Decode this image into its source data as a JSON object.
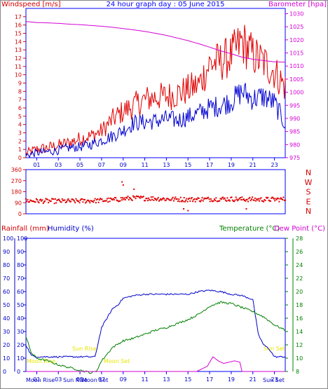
{
  "top_chart": {
    "title": "24 hour graph day : 05 June 2015",
    "left_label": "Windspeed [m/s]",
    "right_label": "Barometer [hpa]"
  },
  "bottom_chart": {
    "rain_label": "Rainfall (mm)",
    "humidity_label": "Humidity (%)",
    "temp_label": "Temperature (°C)",
    "dew_label": "Dew Point (°C)",
    "moon_rise_label": "Moon Rise",
    "moon_set_label": "Moon Set",
    "sun_rise_label": "Sun Rise",
    "sun_set_label": "Sun Set"
  },
  "colors": {
    "red": "#d40000",
    "blue": "#0000c8",
    "magenta": "#d400d4",
    "green": "#008000",
    "axis_blue": "#0000ff",
    "yellow": "#e6e600"
  },
  "chart_data": [
    {
      "type": "line",
      "title": "24 hour graph day : 05 June 2015",
      "ylabel": "Windspeed [m/s]",
      "y2label": "Barometer [hpa]",
      "x_ticks": [
        "01",
        "03",
        "05",
        "07",
        "09",
        "11",
        "13",
        "15",
        "17",
        "19",
        "21",
        "23"
      ],
      "xlim": [
        0,
        24
      ],
      "ylim": [
        0,
        18
      ],
      "y_ticks": [
        0,
        1,
        2,
        3,
        4,
        5,
        6,
        7,
        8,
        9,
        10,
        11,
        12,
        13,
        14,
        15,
        16,
        17
      ],
      "y2lim": [
        975,
        1032
      ],
      "y2_ticks": [
        975,
        980,
        985,
        990,
        995,
        1000,
        1005,
        1010,
        1015,
        1020,
        1025,
        1030
      ],
      "series": [
        {
          "name": "Windspeed",
          "axis": "left",
          "x": [
            0,
            1,
            2,
            3,
            4,
            5,
            6,
            7,
            8,
            9,
            10,
            11,
            12,
            13,
            14,
            15,
            16,
            17,
            18,
            19,
            20,
            21,
            22,
            23,
            24
          ],
          "values": [
            0.5,
            1.0,
            1.2,
            1.5,
            1.8,
            2.3,
            2.6,
            3.2,
            4.6,
            5.6,
            6.3,
            7.0,
            7.3,
            7.4,
            7.7,
            8.2,
            8.8,
            11.3,
            11.6,
            12.3,
            14.0,
            12.4,
            11.5,
            10.4,
            8.5
          ]
        },
        {
          "name": "Gust",
          "axis": "left",
          "x": [
            0,
            1,
            2,
            3,
            4,
            5,
            6,
            7,
            8,
            9,
            10,
            11,
            12,
            13,
            14,
            15,
            16,
            17,
            18,
            19,
            20,
            21,
            22,
            23,
            24
          ],
          "values": [
            0.3,
            0.6,
            0.7,
            0.9,
            1.2,
            1.3,
            1.6,
            2.1,
            2.6,
            3.3,
            4.2,
            4.3,
            4.4,
            4.7,
            4.5,
            4.9,
            5.4,
            6.0,
            6.3,
            6.8,
            8.0,
            7.1,
            7.4,
            6.6,
            4.0
          ]
        },
        {
          "name": "Barometer",
          "axis": "right",
          "x": [
            0,
            1,
            2,
            3,
            4,
            5,
            6,
            7,
            8,
            9,
            10,
            11,
            12,
            13,
            14,
            15,
            16,
            17,
            18,
            19,
            20,
            21,
            22,
            23,
            24
          ],
          "values": [
            1027.0,
            1026.6,
            1026.5,
            1026.3,
            1026.0,
            1025.8,
            1025.5,
            1025.2,
            1024.8,
            1024.3,
            1023.8,
            1023.2,
            1022.5,
            1021.7,
            1020.7,
            1019.7,
            1018.5,
            1017.2,
            1015.8,
            1014.7,
            1013.4,
            1012.6,
            1012.1,
            1011.6,
            1011.5
          ]
        }
      ]
    },
    {
      "type": "scatter",
      "title": "",
      "ylabel": "",
      "y_ticks": [
        0,
        90,
        180,
        270,
        360
      ],
      "ylim": [
        0,
        360
      ],
      "xlim": [
        0,
        24
      ],
      "right_labels": [
        "N",
        "W",
        "S",
        "E",
        "N"
      ],
      "series": [
        {
          "name": "Wind direction",
          "x": [
            0,
            1,
            2,
            3,
            4,
            5,
            6,
            7,
            8,
            9,
            10,
            11,
            12,
            13,
            14,
            15,
            16,
            17,
            18,
            19,
            20,
            21,
            22,
            23,
            24
          ],
          "values": [
            106,
            105,
            104,
            103,
            103,
            104,
            106,
            108,
            112,
            122,
            128,
            126,
            124,
            120,
            118,
            116,
            117,
            119,
            121,
            120,
            118,
            117,
            116,
            117,
            118
          ]
        }
      ]
    },
    {
      "type": "line",
      "title": "",
      "ylabel": "Rainfall (mm)",
      "y1label": "Humidity (%)",
      "y2label": "Temperature (°C)",
      "y3label": "Dew Point (°C)",
      "x_ticks": [
        "01",
        "03",
        "05",
        "07",
        "09",
        "11",
        "13",
        "15",
        "17",
        "19",
        "21",
        "23"
      ],
      "xlim": [
        0,
        24
      ],
      "ylim": [
        0,
        100
      ],
      "y_ticks": [
        0,
        10,
        20,
        30,
        40,
        50,
        60,
        70,
        80,
        90,
        100
      ],
      "y2lim": [
        8,
        28
      ],
      "y2_ticks": [
        8,
        10,
        12,
        14,
        16,
        18,
        20,
        22,
        24,
        26,
        28
      ],
      "series": [
        {
          "name": "Humidity",
          "axis": "left",
          "x": [
            0,
            0.5,
            1,
            2,
            3,
            4,
            5,
            6,
            6.4,
            7,
            8,
            8.5,
            9,
            10,
            11,
            12,
            13,
            14,
            15,
            16,
            17,
            18,
            19,
            20,
            21,
            21.5,
            22,
            22.5,
            23,
            24
          ],
          "values": [
            20,
            12,
            11,
            11,
            11,
            11,
            11,
            11,
            11,
            33,
            47,
            50,
            55,
            57,
            58,
            58,
            58,
            58,
            58,
            60,
            61,
            60,
            58,
            57,
            54,
            28,
            20,
            17,
            11,
            11
          ]
        },
        {
          "name": "Temperature",
          "axis": "right",
          "x": [
            0,
            0.5,
            1,
            2,
            3,
            4,
            5,
            6,
            6.5,
            7,
            8,
            9,
            10,
            11,
            12,
            13,
            14,
            15,
            16,
            17,
            18,
            19,
            20,
            21,
            22,
            23,
            24
          ],
          "values": [
            13.2,
            10.8,
            10.0,
            9.6,
            9.0,
            8.6,
            8.2,
            7.8,
            8.0,
            9.6,
            11.6,
            12.6,
            13.0,
            13.6,
            14.2,
            14.6,
            15.2,
            15.8,
            16.6,
            17.8,
            18.4,
            18.2,
            17.6,
            17.0,
            16.2,
            15.0,
            14.2
          ]
        },
        {
          "name": "Rainfall",
          "axis": "left",
          "x": [
            0,
            15.8,
            16.3,
            16.8,
            17.3,
            17.8,
            18.3,
            18.8,
            19.3,
            19.8,
            20.0,
            24
          ],
          "values": [
            0,
            0,
            2,
            4,
            11,
            8,
            6,
            7,
            8,
            7,
            0,
            0
          ]
        }
      ]
    }
  ]
}
